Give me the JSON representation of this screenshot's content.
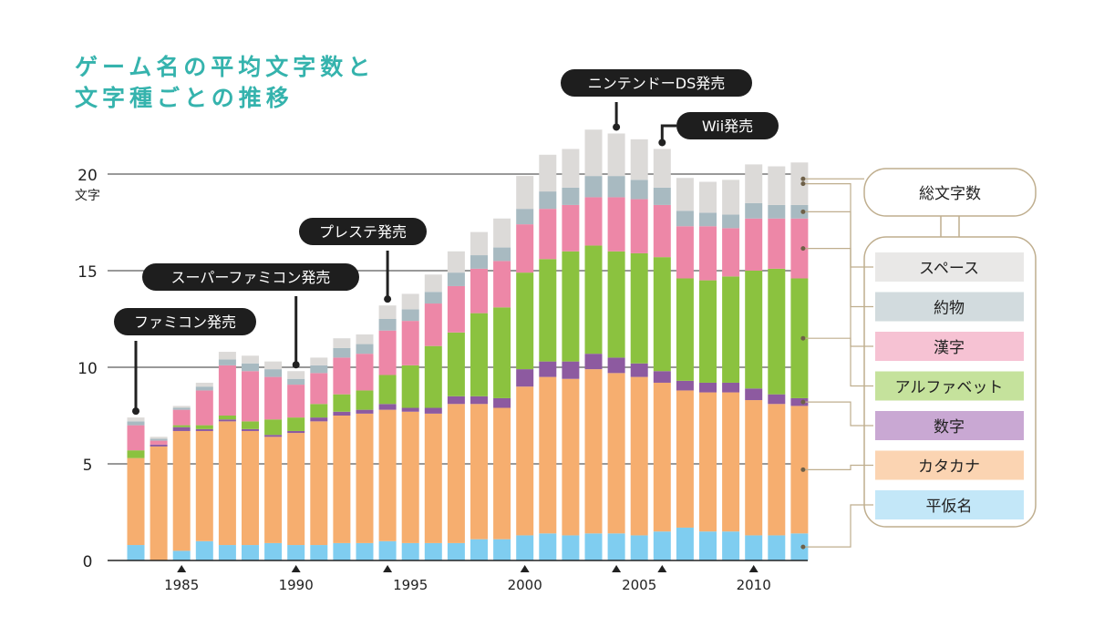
{
  "chart_data": {
    "type": "bar",
    "stacked": true,
    "title": "ゲーム名の平均文字数と\n文字種ごとの推移",
    "title_lines": [
      "ゲーム名の平均文字数と",
      "文字種ごとの推移"
    ],
    "ylabel": "文字",
    "ylim": [
      0,
      21
    ],
    "yticks": [
      0,
      5,
      10,
      15,
      20
    ],
    "xlim": [
      1983,
      2012
    ],
    "xticks": [
      1985,
      1990,
      1995,
      2000,
      2005,
      2010
    ],
    "grid": true,
    "x": [
      1983,
      1984,
      1985,
      1986,
      1987,
      1988,
      1989,
      1990,
      1991,
      1992,
      1993,
      1994,
      1995,
      1996,
      1997,
      1998,
      1999,
      2000,
      2001,
      2002,
      2003,
      2004,
      2005,
      2006,
      2007,
      2008,
      2009,
      2010,
      2011,
      2012
    ],
    "series": [
      {
        "name": "平仮名",
        "color": "#7fcdf0",
        "values": [
          0.8,
          0.0,
          0.5,
          1.0,
          0.8,
          0.8,
          0.9,
          0.8,
          0.8,
          0.9,
          0.9,
          1.0,
          0.9,
          0.9,
          0.9,
          1.1,
          1.1,
          1.3,
          1.4,
          1.3,
          1.4,
          1.4,
          1.3,
          1.5,
          1.7,
          1.5,
          1.5,
          1.3,
          1.3,
          1.4
        ]
      },
      {
        "name": "カタカナ",
        "color": "#f6ae6f",
        "values": [
          4.5,
          5.9,
          6.2,
          5.7,
          6.4,
          5.9,
          5.5,
          5.8,
          6.4,
          6.6,
          6.7,
          6.8,
          6.8,
          6.7,
          7.2,
          7.0,
          6.8,
          7.7,
          8.1,
          8.1,
          8.5,
          8.3,
          8.2,
          7.7,
          7.1,
          7.2,
          7.2,
          7.0,
          6.8,
          6.6
        ]
      },
      {
        "name": "数字",
        "color": "#8d5aa0",
        "values": [
          0.0,
          0.1,
          0.2,
          0.1,
          0.1,
          0.1,
          0.1,
          0.1,
          0.2,
          0.2,
          0.2,
          0.3,
          0.2,
          0.3,
          0.4,
          0.4,
          0.5,
          0.9,
          0.8,
          0.9,
          0.8,
          0.8,
          0.7,
          0.6,
          0.5,
          0.5,
          0.5,
          0.6,
          0.5,
          0.4
        ]
      },
      {
        "name": "アルファベット",
        "color": "#8bc23f",
        "values": [
          0.4,
          0.0,
          0.1,
          0.2,
          0.2,
          0.4,
          0.8,
          0.7,
          0.7,
          0.9,
          1.0,
          1.5,
          2.2,
          3.2,
          3.3,
          4.3,
          4.7,
          5.0,
          5.3,
          5.7,
          5.6,
          5.5,
          5.7,
          5.9,
          5.3,
          5.3,
          5.5,
          6.1,
          6.5,
          6.2
        ]
      },
      {
        "name": "漢字",
        "color": "#ed87a7",
        "values": [
          1.3,
          0.2,
          0.8,
          1.8,
          2.6,
          2.6,
          2.2,
          1.7,
          1.6,
          1.9,
          1.9,
          2.3,
          2.3,
          2.2,
          2.4,
          2.3,
          2.4,
          2.5,
          2.6,
          2.4,
          2.5,
          2.8,
          2.8,
          2.7,
          2.7,
          2.8,
          2.5,
          2.7,
          2.6,
          3.1
        ]
      },
      {
        "name": "約物",
        "color": "#a8bac1",
        "values": [
          0.2,
          0.1,
          0.1,
          0.2,
          0.3,
          0.4,
          0.4,
          0.3,
          0.4,
          0.5,
          0.5,
          0.6,
          0.6,
          0.6,
          0.7,
          0.7,
          0.7,
          0.8,
          0.9,
          0.9,
          1.1,
          1.1,
          1.0,
          0.9,
          0.8,
          0.7,
          0.7,
          0.8,
          0.7,
          0.7
        ]
      },
      {
        "name": "スペース",
        "color": "#dcdad8",
        "values": [
          0.2,
          0.1,
          0.1,
          0.2,
          0.4,
          0.4,
          0.4,
          0.4,
          0.4,
          0.5,
          0.5,
          0.7,
          0.8,
          0.9,
          1.1,
          1.2,
          1.5,
          1.7,
          1.9,
          2.0,
          2.4,
          2.2,
          2.1,
          2.0,
          1.7,
          1.6,
          1.8,
          2.0,
          2.0,
          2.2
        ]
      }
    ],
    "legend_total_label": "総文字数",
    "legend_placement": "right",
    "annotations": [
      {
        "label": "ファミコン発売",
        "x": 1983
      },
      {
        "label": "スーパーファミコン発売",
        "x": 1990
      },
      {
        "label": "プレステ発売",
        "x": 1994
      },
      {
        "label": "ニンテンドーDS発売",
        "x": 2004
      },
      {
        "label": "Wii発売",
        "x": 2006
      }
    ],
    "axis_markers": [
      1985,
      1990,
      1994,
      2000,
      2004,
      2006,
      2010
    ]
  }
}
